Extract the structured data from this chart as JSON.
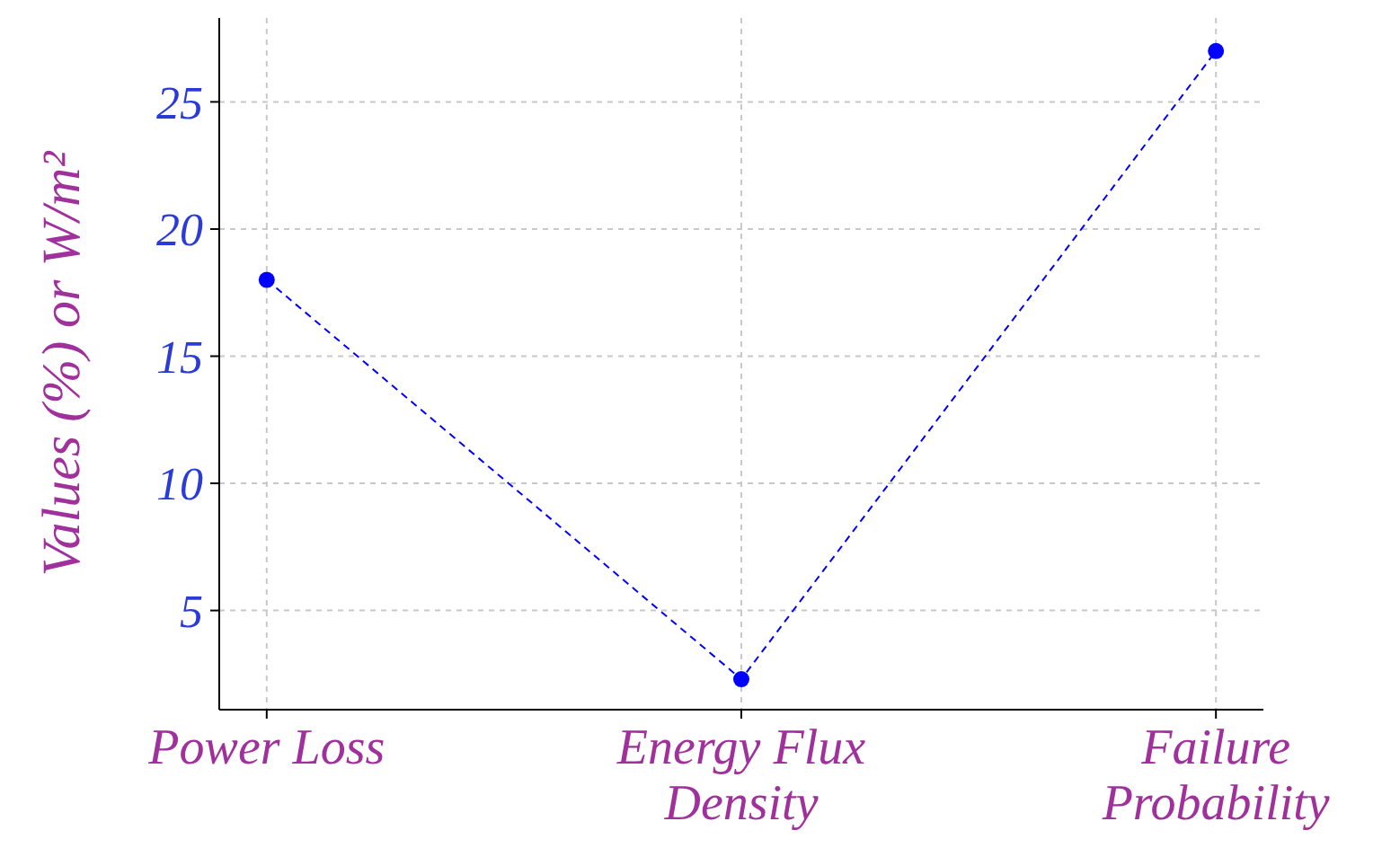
{
  "chart_data": {
    "type": "line",
    "ylabel": "Values (%) or W/m²",
    "categories": [
      "Power Loss",
      "Energy Flux\nDensity",
      "Failure\nProbability"
    ],
    "series": [
      {
        "color": "#0000ff",
        "values": [
          18,
          2.3,
          27
        ]
      }
    ],
    "ylim": [
      1.1,
      28.3
    ],
    "yticks": [
      5,
      10,
      15,
      20,
      25
    ],
    "grid": true,
    "marker": "circle",
    "line_style": "dashed"
  }
}
